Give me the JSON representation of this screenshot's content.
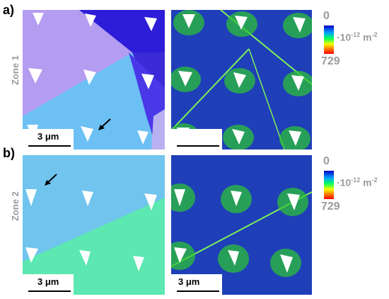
{
  "panels": [
    {
      "letter": "a)",
      "zone_label": "Zone 1",
      "left_scale": "3 μm",
      "right_scale": "",
      "colorbar": {
        "top": "0",
        "bottom": "729",
        "unit_base": "·10",
        "unit_exp1": "-12",
        "unit_mid": " m",
        "unit_exp2": "-2"
      }
    },
    {
      "letter": "b)",
      "zone_label": "Zone 2",
      "left_scale": "3 μm",
      "right_scale": "3 μm",
      "colorbar": {
        "top": "0",
        "bottom": "729",
        "unit_base": "·10",
        "unit_exp1": "-12",
        "unit_mid": " m",
        "unit_exp2": "-2"
      }
    }
  ],
  "colors": {
    "orientation_a_violet": "#b49cf0",
    "orientation_a_darkblue": "#2d1cd8",
    "orientation_a_skyblue": "#6cc0f4",
    "orientation_a_indigo": "#4a38e8",
    "orientation_b_skyblue": "#70c4ee",
    "orientation_b_mint": "#5ce8b0",
    "density_background": "#1f3fb8",
    "density_line": "#7cf05a"
  }
}
